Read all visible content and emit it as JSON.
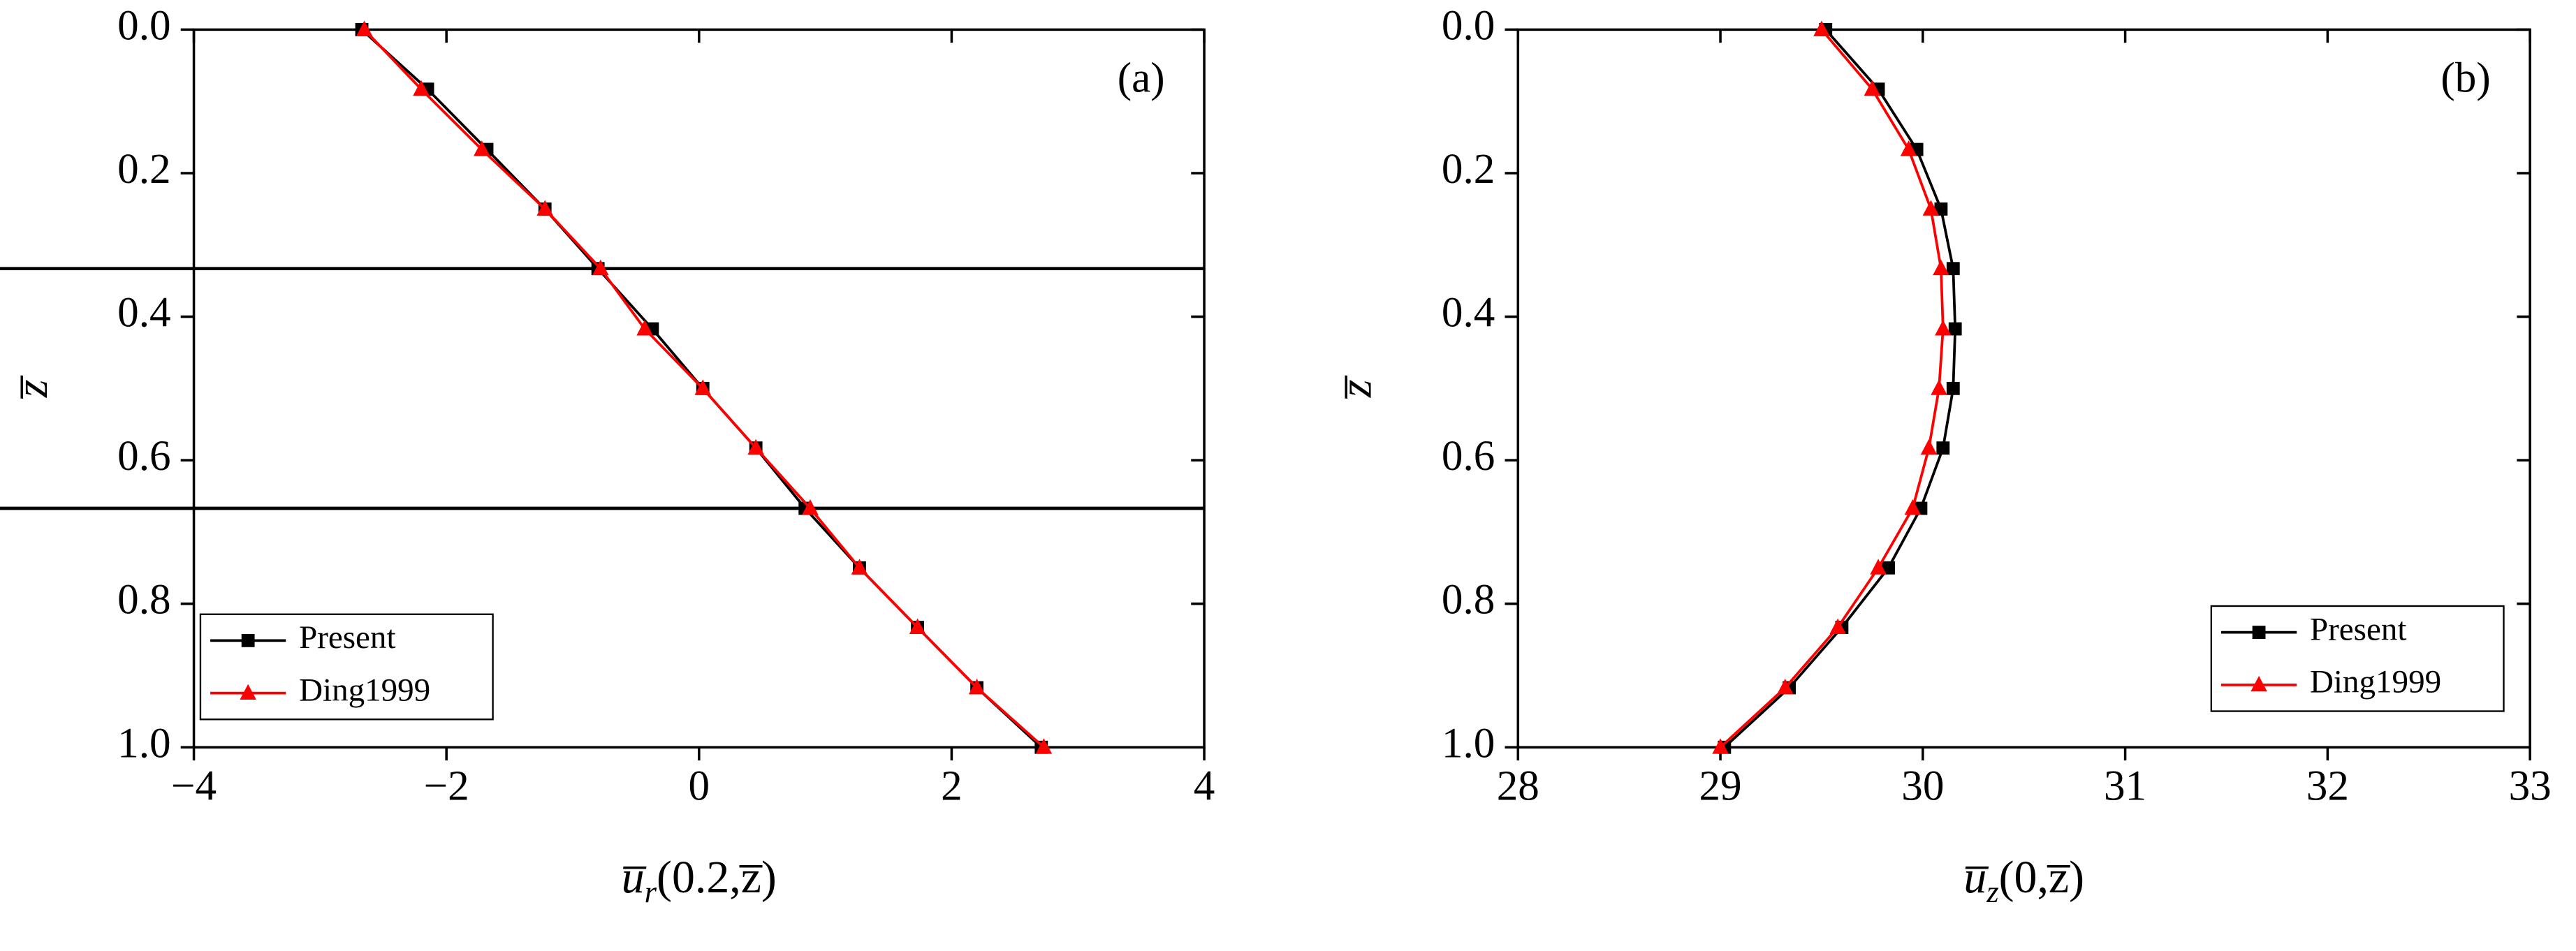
{
  "chart_data": [
    {
      "type": "line",
      "panel_label": "(a)",
      "xlabel": {
        "base": "u̅",
        "sub": "r",
        "args": "(0.2,z̅)"
      },
      "ylabel": "z̅",
      "xlim": [
        -4,
        4
      ],
      "xticks": [
        {
          "value": -4,
          "label": "−4"
        },
        {
          "value": -2,
          "label": "−2"
        },
        0,
        2,
        4
      ],
      "ylim": [
        0,
        1
      ],
      "yinverted": true,
      "yticks": [
        {
          "value": 0,
          "label": "0.0"
        },
        0.2,
        0.4,
        0.6,
        0.8,
        {
          "value": 1,
          "label": "1.0"
        }
      ],
      "hlines": [
        0.333,
        0.667
      ],
      "legend": "lower left",
      "series": [
        {
          "name": "Present",
          "color": "#000000",
          "marker": "square",
          "x": [
            -2.67,
            -2.15,
            -1.68,
            -1.22,
            -0.8,
            -0.37,
            0.03,
            0.45,
            0.84,
            1.27,
            1.73,
            2.2,
            2.71
          ],
          "values": [
            0,
            0.083,
            0.167,
            0.25,
            0.333,
            0.417,
            0.5,
            0.583,
            0.667,
            0.75,
            0.833,
            0.917,
            1.0
          ]
        },
        {
          "name": "Ding1999",
          "color": "#ff0000",
          "marker": "triangle",
          "x": [
            -2.65,
            -2.2,
            -1.72,
            -1.22,
            -0.78,
            -0.43,
            0.03,
            0.45,
            0.88,
            1.27,
            1.73,
            2.2,
            2.73
          ],
          "values": [
            0,
            0.083,
            0.167,
            0.25,
            0.333,
            0.417,
            0.5,
            0.583,
            0.667,
            0.75,
            0.833,
            0.917,
            1.0
          ]
        }
      ]
    },
    {
      "type": "line",
      "panel_label": "(b)",
      "xlabel": {
        "base": "u̅",
        "sub": "z",
        "args": "(0,z̅)"
      },
      "ylabel": "z̅",
      "xlim": [
        28,
        33
      ],
      "xticks": [
        28,
        29,
        30,
        31,
        32,
        33
      ],
      "ylim": [
        0,
        1
      ],
      "yinverted": true,
      "yticks": [
        {
          "value": 0,
          "label": "0.0"
        },
        0.2,
        0.4,
        0.6,
        0.8,
        {
          "value": 1,
          "label": "1.0"
        }
      ],
      "legend": "lower right",
      "series": [
        {
          "name": "Present",
          "color": "#000000",
          "marker": "square",
          "x": [
            29.52,
            29.78,
            29.97,
            30.09,
            30.15,
            30.16,
            30.15,
            30.1,
            29.99,
            29.83,
            29.6,
            29.34,
            29.02
          ],
          "values": [
            0,
            0.083,
            0.167,
            0.25,
            0.333,
            0.417,
            0.5,
            0.583,
            0.667,
            0.75,
            0.833,
            0.917,
            1.0
          ]
        },
        {
          "name": "Ding1999",
          "color": "#ff0000",
          "marker": "triangle",
          "x": [
            29.5,
            29.75,
            29.93,
            30.04,
            30.09,
            30.1,
            30.08,
            30.03,
            29.95,
            29.78,
            29.58,
            29.32,
            29.0
          ],
          "values": [
            0,
            0.083,
            0.167,
            0.25,
            0.333,
            0.417,
            0.5,
            0.583,
            0.667,
            0.75,
            0.833,
            0.917,
            1.0
          ]
        }
      ]
    }
  ]
}
